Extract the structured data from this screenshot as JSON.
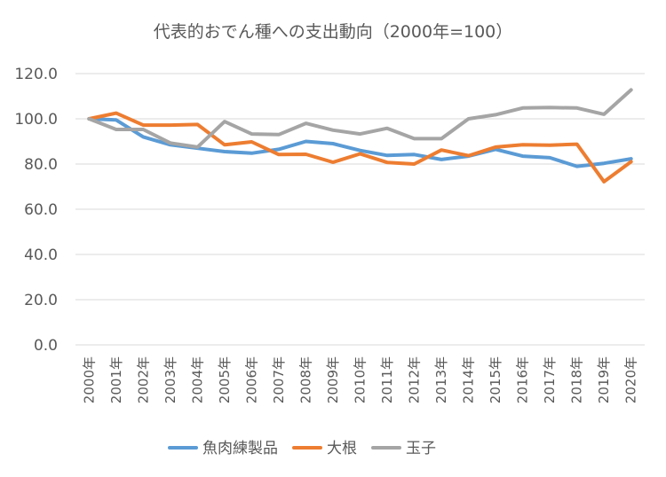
{
  "chart_data": {
    "type": "line",
    "title": "代表的おでん種への支出動向（2000年=100）",
    "x": [
      "2000年",
      "2001年",
      "2002年",
      "2003年",
      "2004年",
      "2005年",
      "2006年",
      "2007年",
      "2008年",
      "2009年",
      "2010年",
      "2011年",
      "2012年",
      "2013年",
      "2014年",
      "2015年",
      "2016年",
      "2017年",
      "2018年",
      "2019年",
      "2020年"
    ],
    "ylim": [
      0,
      120
    ],
    "yticks": [
      "0.0",
      "20.0",
      "40.0",
      "60.0",
      "80.0",
      "100.0",
      "120.0"
    ],
    "grid": true,
    "legend_position": "bottom",
    "series": [
      {
        "name": "魚肉練製品",
        "color": "#5b9bd5",
        "values": [
          100,
          99.5,
          92,
          88.5,
          87,
          85.5,
          84.8,
          86.5,
          90,
          89,
          86,
          83.8,
          84.2,
          82,
          83.5,
          86.5,
          83.5,
          82.8,
          79,
          80.3,
          82.3
        ]
      },
      {
        "name": "大根",
        "color": "#ed7d31",
        "values": [
          100,
          102.5,
          97.2,
          97.2,
          97.5,
          88.5,
          89.8,
          84.2,
          84.3,
          80.8,
          84.5,
          80.7,
          80,
          86.2,
          83.7,
          87.5,
          88.5,
          88.3,
          88.8,
          72.2,
          81
        ]
      },
      {
        "name": "玉子",
        "color": "#a5a5a5",
        "values": [
          100,
          95.3,
          95.3,
          89.3,
          87.5,
          98.8,
          93.3,
          93,
          98,
          95,
          93.3,
          95.8,
          91.2,
          91.2,
          100,
          101.8,
          104.8,
          105,
          104.8,
          102,
          112.8
        ]
      }
    ]
  }
}
